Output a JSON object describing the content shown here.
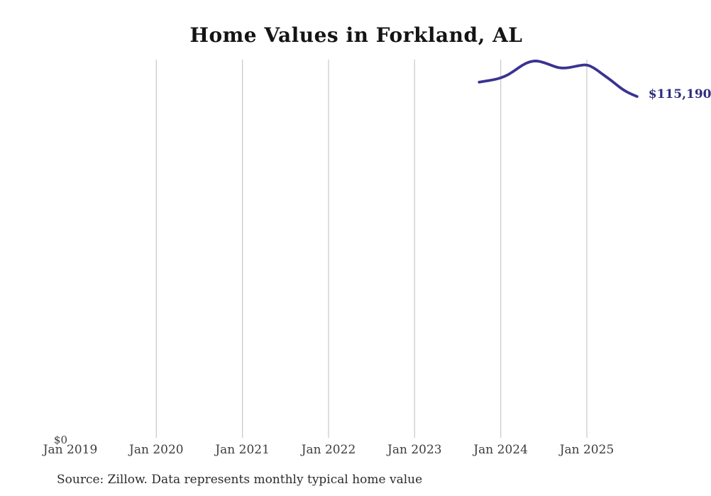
{
  "chart": {
    "title": "Home Values in Forkland, AL",
    "y_zero_label": "$0",
    "end_label": "$115,190",
    "source": "Source: Zillow. Data represents monthly typical home value",
    "line_color": "#3a3391",
    "end_label_color": "#2f2c7e",
    "grid_color": "#cccccc"
  },
  "chart_data": {
    "type": "line",
    "title": "Home Values in Forkland, AL",
    "xlabel": "",
    "ylabel": "",
    "ylim": [
      0,
      128000
    ],
    "grid": "vertical-only",
    "legend": "none",
    "annotation": "$115,190",
    "x_ticks": [
      {
        "label": "Jan 2019",
        "year": 2019,
        "gridline": false
      },
      {
        "label": "Jan 2020",
        "year": 2020,
        "gridline": true
      },
      {
        "label": "Jan 2021",
        "year": 2021,
        "gridline": true
      },
      {
        "label": "Jan 2022",
        "year": 2022,
        "gridline": true
      },
      {
        "label": "Jan 2023",
        "year": 2023,
        "gridline": true
      },
      {
        "label": "Jan 2024",
        "year": 2024,
        "gridline": true
      },
      {
        "label": "Jan 2025",
        "year": 2025,
        "gridline": true
      }
    ],
    "series": [
      {
        "name": "Monthly typical home value",
        "points": [
          {
            "date": "2023-10",
            "value": 120000
          },
          {
            "date": "2023-11",
            "value": 120400
          },
          {
            "date": "2023-12",
            "value": 120800
          },
          {
            "date": "2024-01",
            "value": 121400
          },
          {
            "date": "2024-02",
            "value": 122400
          },
          {
            "date": "2024-03",
            "value": 124000
          },
          {
            "date": "2024-04",
            "value": 125700
          },
          {
            "date": "2024-05",
            "value": 126900
          },
          {
            "date": "2024-06",
            "value": 127200
          },
          {
            "date": "2024-07",
            "value": 126600
          },
          {
            "date": "2024-08",
            "value": 125700
          },
          {
            "date": "2024-09",
            "value": 124800
          },
          {
            "date": "2024-10",
            "value": 124700
          },
          {
            "date": "2024-11",
            "value": 125100
          },
          {
            "date": "2024-12",
            "value": 125600
          },
          {
            "date": "2025-01",
            "value": 125900
          },
          {
            "date": "2025-02",
            "value": 124800
          },
          {
            "date": "2025-03",
            "value": 123000
          },
          {
            "date": "2025-04",
            "value": 121300
          },
          {
            "date": "2025-05",
            "value": 119400
          },
          {
            "date": "2025-06",
            "value": 117500
          },
          {
            "date": "2025-07",
            "value": 116200
          },
          {
            "date": "2025-08",
            "value": 115190
          }
        ]
      }
    ]
  }
}
